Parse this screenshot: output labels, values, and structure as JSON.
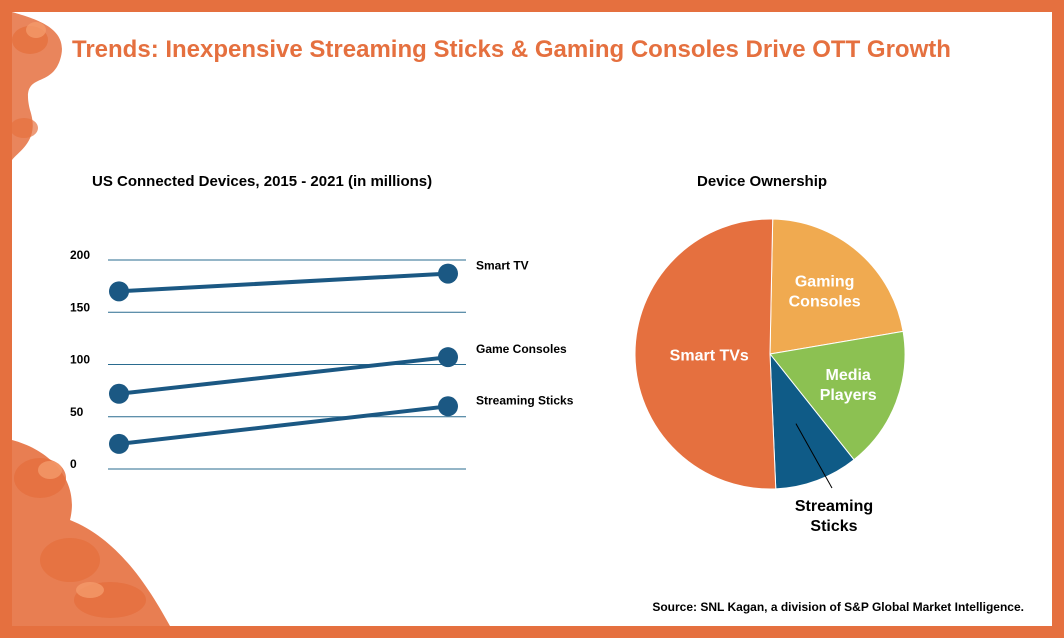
{
  "title": "Trends: Inexpensive Streaming Sticks & Gaming Consoles Drive OTT Growth",
  "source": "Source: SNL Kagan, a division of S&P Global Market Intelligence.",
  "colors": {
    "accent": "#e5703f",
    "line": "#1b5883",
    "grid": "#2a6b8f",
    "pie_smart_tvs": "#e5703f",
    "pie_gaming": "#f0aa50",
    "pie_media": "#8cc152",
    "pie_streaming": "#0f5b87"
  },
  "chart_data": [
    {
      "type": "line",
      "title": "US Connected Devices, 2015 - 2021 (in millions)",
      "x": [
        "2015",
        "2021"
      ],
      "ylim": [
        0,
        200
      ],
      "yticks": [
        0,
        50,
        100,
        150,
        200
      ],
      "series": [
        {
          "name": "Smart TV",
          "values": [
            170,
            187
          ]
        },
        {
          "name": "Game Consoles",
          "values": [
            72,
            107
          ]
        },
        {
          "name": "Streaming Sticks",
          "values": [
            24,
            60
          ]
        }
      ]
    },
    {
      "type": "pie",
      "title": "Device Ownership",
      "slices": [
        {
          "name": "Gaming Consoles",
          "lines": [
            "Gaming",
            "Consoles"
          ],
          "value": 22,
          "key": "pie_gaming"
        },
        {
          "name": "Media Players",
          "lines": [
            "Media",
            "Players"
          ],
          "value": 17,
          "key": "pie_media"
        },
        {
          "name": "Streaming Sticks",
          "lines": [
            "Streaming",
            "Sticks"
          ],
          "value": 10,
          "key": "pie_streaming"
        },
        {
          "name": "Smart TVs",
          "lines": [
            "Smart TVs"
          ],
          "value": 51,
          "key": "pie_smart_tvs"
        }
      ]
    }
  ]
}
